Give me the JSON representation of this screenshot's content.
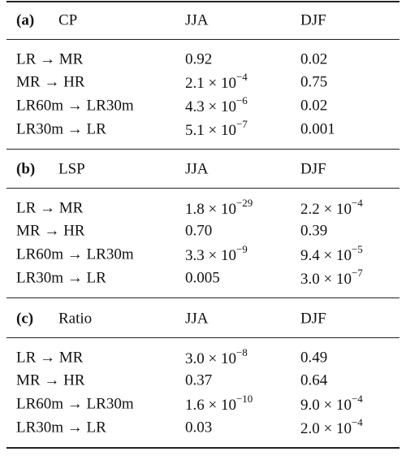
{
  "sections": [
    {
      "label": "(a)",
      "name": "CP",
      "columns": [
        "JJA",
        "DJF"
      ],
      "rows": [
        [
          "LR → MR",
          "0.92",
          "0.02"
        ],
        [
          "MR → HR",
          {
            "base": "2.1 × 10",
            "exp": "−4"
          },
          "0.75"
        ],
        [
          "LR60m → LR30m",
          {
            "base": "4.3 × 10",
            "exp": "−6"
          },
          "0.02"
        ],
        [
          "LR30m → LR",
          {
            "base": "5.1 × 10",
            "exp": "−7"
          },
          "0.001"
        ]
      ]
    },
    {
      "label": "(b)",
      "name": "LSP",
      "columns": [
        "JJA",
        "DJF"
      ],
      "rows": [
        [
          "LR → MR",
          {
            "base": "1.8 × 10",
            "exp": "−29"
          },
          {
            "base": "2.2 × 10",
            "exp": "−4"
          }
        ],
        [
          "MR → HR",
          "0.70",
          "0.39"
        ],
        [
          "LR60m → LR30m",
          {
            "base": "3.3 × 10",
            "exp": "−9"
          },
          {
            "base": "9.4 × 10",
            "exp": "−5"
          }
        ],
        [
          "LR30m → LR",
          "0.005",
          {
            "base": "3.0 × 10",
            "exp": "−7"
          }
        ]
      ]
    },
    {
      "label": "(c)",
      "name": "Ratio",
      "columns": [
        "JJA",
        "DJF"
      ],
      "rows": [
        [
          "LR → MR",
          {
            "base": "3.0 × 10",
            "exp": "−8"
          },
          "0.49"
        ],
        [
          "MR → HR",
          "0.37",
          "0.64"
        ],
        [
          "LR60m → LR30m",
          {
            "base": "1.6 × 10",
            "exp": "−10"
          },
          {
            "base": "9.0 × 10",
            "exp": "−4"
          }
        ],
        [
          "LR30m → LR",
          "0.03",
          {
            "base": "2.0 × 10",
            "exp": "−4"
          }
        ]
      ]
    }
  ]
}
